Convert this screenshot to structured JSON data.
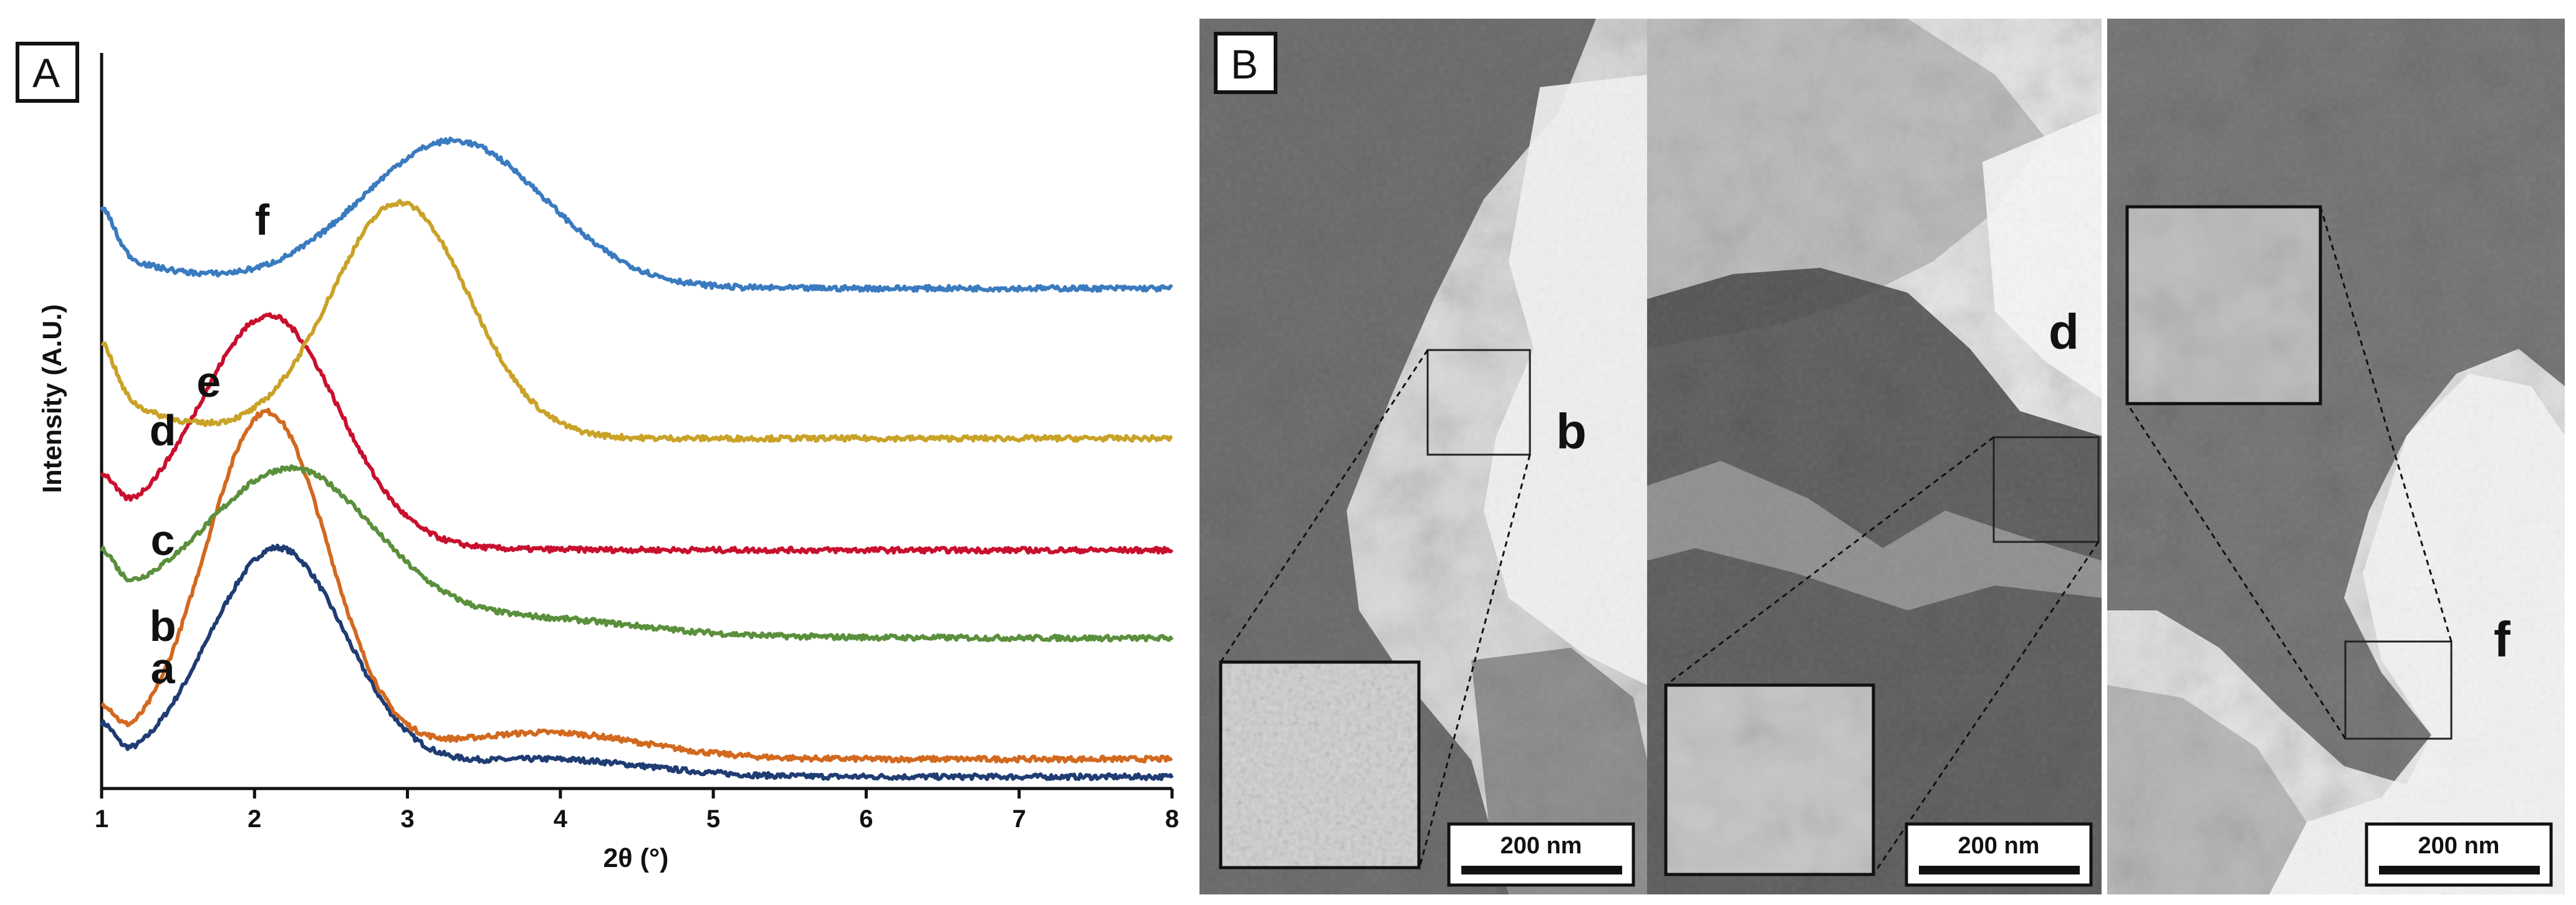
{
  "panel_a": {
    "label": "A",
    "chart_data": {
      "type": "line",
      "title": "",
      "xlabel": "2θ (°)",
      "ylabel": "Intensity (A.U.)",
      "xlim": [
        1,
        8
      ],
      "x_ticks": [
        "1",
        "2",
        "3",
        "4",
        "5",
        "6",
        "7",
        "8"
      ],
      "y_ticks": [],
      "grid": false,
      "series": [
        {
          "name": "a",
          "color": "#1f3c73",
          "offset": 0.08,
          "amp": 1.55,
          "peak": 2.15,
          "width": 0.45,
          "base": 0.05,
          "tail_decay": 1.5,
          "shoulder": 0.12
        },
        {
          "name": "b",
          "color": "#d2691e",
          "offset": 0.2,
          "amp": 2.35,
          "peak": 2.08,
          "width": 0.4,
          "base": 0.06,
          "tail_decay": 1.3,
          "shoulder": 0.18
        },
        {
          "name": "c",
          "color": "#5a8f3c",
          "offset": 1.02,
          "amp": 1.05,
          "peak": 2.25,
          "width": 0.55,
          "base": 0.45,
          "tail_decay": 0.7,
          "shoulder": 0.1
        },
        {
          "name": "d",
          "color": "#c8102e",
          "offset": 1.62,
          "amp": 1.55,
          "peak": 2.1,
          "width": 0.45,
          "base": 0.3,
          "tail_decay": 1.2,
          "shoulder": 0.0
        },
        {
          "name": "e",
          "color": "#c9a227",
          "offset": 2.38,
          "amp": 1.6,
          "peak": 2.95,
          "width": 0.45,
          "base": 0.7,
          "tail_decay": 2.4,
          "shoulder": 0.0
        },
        {
          "name": "f",
          "color": "#3a7bbf",
          "offset": 3.4,
          "amp": 1.0,
          "peak": 3.3,
          "width": 0.6,
          "base": 0.5,
          "tail_decay": 1.9,
          "shoulder": 0.0
        }
      ]
    }
  },
  "panel_b": {
    "label": "B",
    "images": [
      {
        "label": "b",
        "scale_bar": "200 nm"
      },
      {
        "label": "d",
        "scale_bar": "200 nm"
      },
      {
        "label": "f",
        "scale_bar": "200 nm"
      }
    ]
  }
}
